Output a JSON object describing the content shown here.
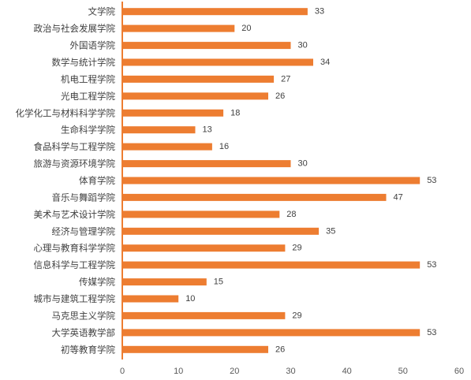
{
  "chart_data": {
    "type": "bar",
    "orientation": "horizontal",
    "categories": [
      "文学院",
      "政治与社会发展学院",
      "外国语学院",
      "数学与统计学院",
      "机电工程学院",
      "光电工程学院",
      "化学化工与材料科学学院",
      "生命科学学院",
      "食品科学与工程学院",
      "旅游与资源环境学院",
      "体育学院",
      "音乐与舞蹈学院",
      "美术与艺术设计学院",
      "经济与管理学院",
      "心理与教育科学学院",
      "信息科学与工程学院",
      "传媒学院",
      "城市与建筑工程学院",
      "马克思主义学院",
      "大学英语教学部",
      "初等教育学院"
    ],
    "values": [
      33,
      20,
      30,
      34,
      27,
      26,
      18,
      13,
      16,
      30,
      53,
      47,
      28,
      35,
      29,
      53,
      15,
      10,
      29,
      53,
      26
    ],
    "xlim": [
      0,
      60
    ],
    "xticks": [
      0,
      10,
      20,
      30,
      40,
      50,
      60
    ],
    "title": "",
    "xlabel": "",
    "ylabel": "",
    "grid": false,
    "legend": "none",
    "bar_color": "#ED7D31",
    "axis_color": "#ED7D31"
  }
}
